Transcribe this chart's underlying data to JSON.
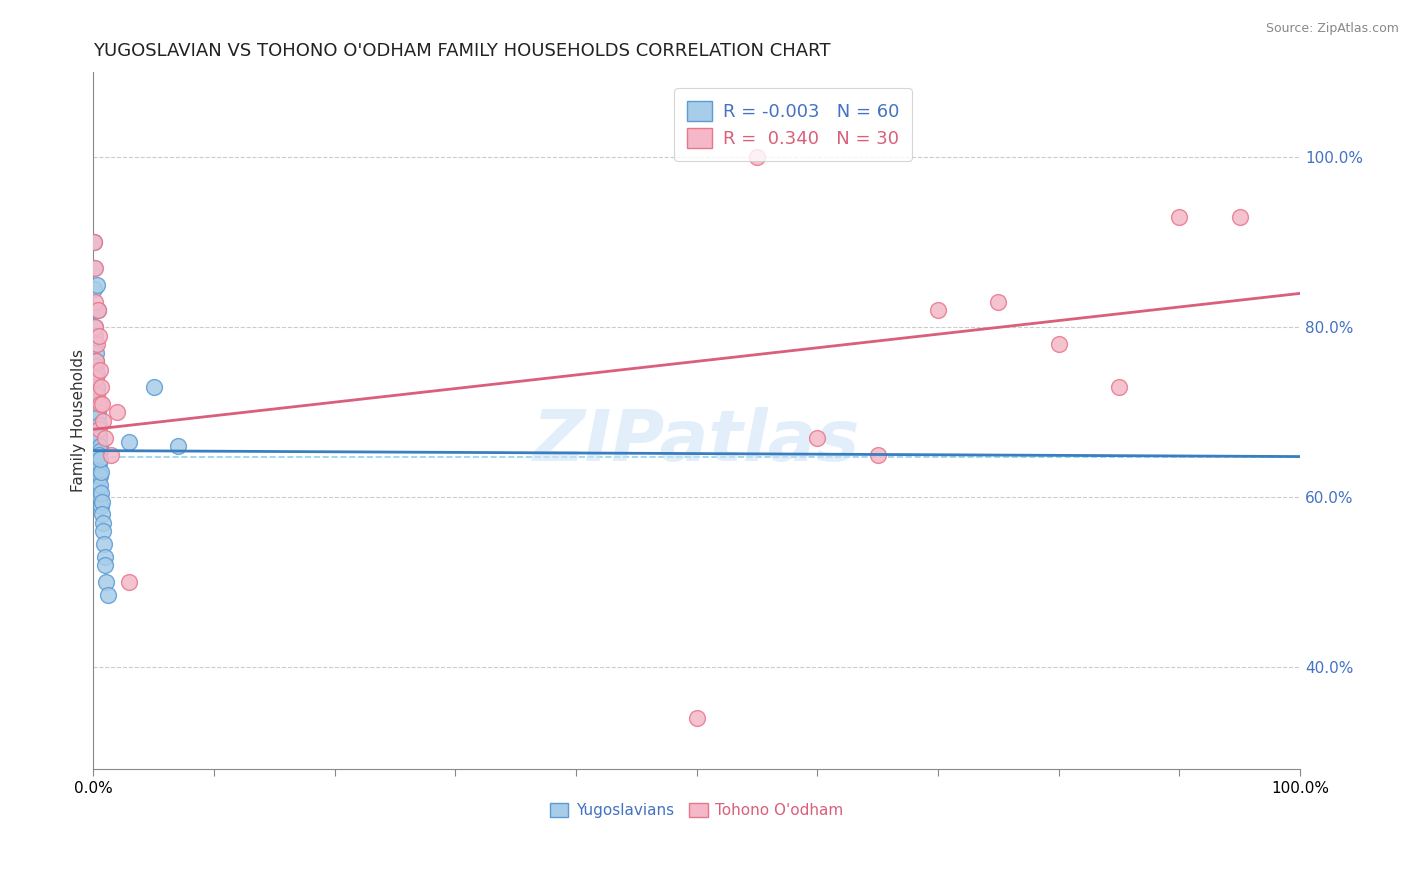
{
  "title": "YUGOSLAVIAN VS TOHONO O'ODHAM FAMILY HOUSEHOLDS CORRELATION CHART",
  "source": "Source: ZipAtlas.com",
  "xlabel_left": "Yugoslavians",
  "xlabel_right": "Tohono O'odham",
  "ylabel": "Family Households",
  "right_yticks": [
    40.0,
    60.0,
    80.0,
    100.0
  ],
  "blue_R": "-0.003",
  "blue_N": "60",
  "pink_R": "0.340",
  "pink_N": "30",
  "blue_color": "#a8cde8",
  "pink_color": "#f4b8c8",
  "blue_edge_color": "#5b9bd5",
  "pink_edge_color": "#e8768a",
  "blue_line_color": "#3a7ebf",
  "pink_line_color": "#d95f7a",
  "blue_scatter": [
    [
      0.15,
      66.5
    ],
    [
      0.18,
      68.5
    ],
    [
      0.22,
      64.0
    ],
    [
      0.25,
      72.5
    ],
    [
      0.28,
      70.0
    ],
    [
      0.3,
      67.0
    ],
    [
      0.32,
      63.5
    ],
    [
      0.35,
      65.5
    ],
    [
      0.38,
      68.0
    ],
    [
      0.4,
      62.0
    ],
    [
      0.42,
      64.5
    ],
    [
      0.45,
      66.0
    ],
    [
      0.48,
      61.0
    ],
    [
      0.5,
      63.0
    ],
    [
      0.52,
      64.0
    ],
    [
      0.55,
      62.5
    ],
    [
      0.58,
      60.0
    ],
    [
      0.6,
      61.5
    ],
    [
      0.62,
      59.0
    ],
    [
      0.65,
      63.0
    ],
    [
      0.68,
      60.5
    ],
    [
      0.72,
      59.5
    ],
    [
      0.75,
      58.0
    ],
    [
      0.8,
      57.0
    ],
    [
      0.85,
      56.0
    ],
    [
      0.9,
      54.5
    ],
    [
      0.95,
      53.0
    ],
    [
      1.0,
      52.0
    ],
    [
      1.1,
      50.0
    ],
    [
      1.2,
      48.5
    ],
    [
      0.1,
      84.5
    ],
    [
      0.12,
      82.0
    ],
    [
      0.14,
      80.0
    ],
    [
      0.16,
      79.0
    ],
    [
      0.19,
      78.0
    ],
    [
      0.21,
      77.0
    ],
    [
      0.23,
      76.0
    ],
    [
      0.26,
      75.5
    ],
    [
      0.29,
      74.5
    ],
    [
      0.31,
      73.0
    ],
    [
      0.33,
      72.5
    ],
    [
      0.36,
      71.5
    ],
    [
      0.39,
      71.0
    ],
    [
      0.41,
      70.0
    ],
    [
      0.43,
      69.5
    ],
    [
      0.46,
      68.5
    ],
    [
      0.49,
      67.5
    ],
    [
      0.51,
      67.0
    ],
    [
      0.54,
      66.0
    ],
    [
      0.57,
      65.5
    ],
    [
      0.07,
      87.0
    ],
    [
      0.08,
      90.0
    ],
    [
      0.35,
      73.0
    ],
    [
      0.5,
      65.0
    ],
    [
      5.0,
      73.0
    ],
    [
      0.6,
      64.5
    ],
    [
      3.0,
      66.5
    ],
    [
      7.0,
      66.0
    ],
    [
      0.4,
      82.0
    ],
    [
      0.3,
      85.0
    ]
  ],
  "pink_scatter": [
    [
      0.1,
      90.0
    ],
    [
      0.12,
      87.0
    ],
    [
      0.15,
      83.0
    ],
    [
      0.18,
      80.0
    ],
    [
      0.22,
      76.0
    ],
    [
      0.25,
      74.0
    ],
    [
      0.3,
      78.0
    ],
    [
      0.35,
      72.0
    ],
    [
      0.4,
      82.0
    ],
    [
      0.45,
      79.0
    ],
    [
      0.5,
      68.0
    ],
    [
      0.6,
      71.0
    ],
    [
      0.8,
      69.0
    ],
    [
      1.0,
      67.0
    ],
    [
      1.5,
      65.0
    ],
    [
      2.0,
      70.0
    ],
    [
      3.0,
      50.0
    ],
    [
      0.55,
      75.0
    ],
    [
      0.65,
      73.0
    ],
    [
      0.75,
      71.0
    ],
    [
      55.0,
      100.0
    ],
    [
      60.0,
      67.0
    ],
    [
      70.0,
      82.0
    ],
    [
      75.0,
      83.0
    ],
    [
      80.0,
      78.0
    ],
    [
      85.0,
      73.0
    ],
    [
      90.0,
      93.0
    ],
    [
      95.0,
      93.0
    ],
    [
      50.0,
      34.0
    ],
    [
      65.0,
      65.0
    ]
  ],
  "blue_line_x": [
    0.0,
    100.0
  ],
  "blue_line_y": [
    65.5,
    64.8
  ],
  "pink_line_x": [
    0.0,
    100.0
  ],
  "pink_line_y": [
    68.0,
    84.0
  ],
  "mean_line_y": 64.8,
  "xlim": [
    0.0,
    100.0
  ],
  "ylim": [
    28.0,
    110.0
  ],
  "ytick_grid": [
    40.0,
    60.0,
    80.0,
    100.0
  ],
  "watermark": "ZIPatlas",
  "background_color": "#ffffff",
  "grid_color": "#cccccc",
  "mean_line_color": "#87ceeb"
}
